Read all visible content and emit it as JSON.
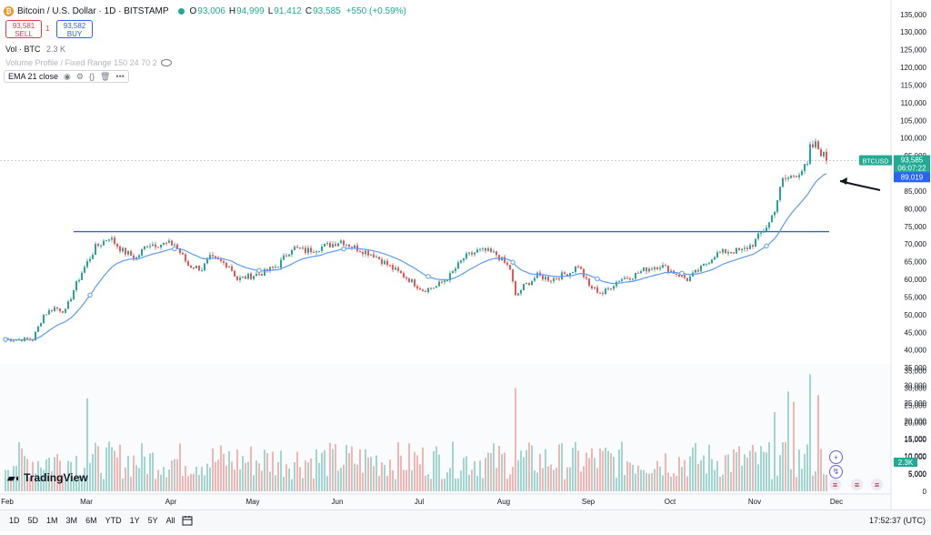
{
  "header": {
    "coin_glyph": "₿",
    "title": "Bitcoin / U.S. Dollar · 1D · BITSTAMP",
    "o_label": "O",
    "o_value": "93,006",
    "h_label": "H",
    "h_value": "94,999",
    "l_label": "L",
    "l_value": "91,412",
    "c_label": "C",
    "c_value": "93,585",
    "change": "+550 (+0.59%)"
  },
  "trade": {
    "sell_price": "93,581",
    "sell_label": "SELL",
    "spread": "1",
    "buy_price": "93,582",
    "buy_label": "BUY"
  },
  "volume_legend": {
    "label": "Vol · BTC",
    "value": "2.3 K"
  },
  "volume_profile_legend": "Volume Profile / Fixed Range 150 24 70 2",
  "ema_legend": {
    "label": "EMA 21 close"
  },
  "logo_text": "TradingView",
  "timeframes": [
    "1D",
    "5D",
    "1M",
    "3M",
    "6M",
    "YTD",
    "1Y",
    "5Y",
    "All"
  ],
  "clock": "17:52:37 (UTC)",
  "colors": {
    "up": "#26a69a",
    "down": "#ef5350",
    "ema": "#5b9cf6",
    "hline": "#3b5bdb",
    "price_tag": "#22ab94",
    "ema_tag": "#2962ff"
  },
  "icons": [
    "eye-icon",
    "gear-icon",
    "braces-icon",
    "trash-icon",
    "more-icon",
    "calendar-icon",
    "plus-icon",
    "arrow-icon"
  ],
  "chart_data": {
    "type": "candlestick",
    "symbol": "BTCUSD",
    "y_axis": {
      "range": [
        0,
        137000
      ],
      "ticks": [
        0,
        5000,
        10000,
        15000,
        20000,
        25000,
        30000,
        35000,
        40000,
        45000,
        50000,
        55000,
        60000,
        65000,
        70000,
        75000,
        80000,
        85000,
        90000,
        95000,
        100000,
        105000,
        110000,
        115000,
        120000,
        125000,
        130000,
        135000
      ],
      "tick_labels": [
        "0",
        "5,000",
        "10,000",
        "15,000",
        "20,000",
        "25,000",
        "30,000",
        "35,000",
        "40,000",
        "45,000",
        "50,000",
        "55,000",
        "60,000",
        "65,000",
        "70,000",
        "75,000",
        "80,000",
        "85,000",
        "90,000",
        "95,000",
        "100,000",
        "105,000",
        "110,000",
        "115,000",
        "120,000",
        "125,000",
        "130,000",
        "135,000"
      ]
    },
    "x_axis": {
      "labels": [
        "Feb",
        "Mar",
        "Apr",
        "May",
        "Jun",
        "Jul",
        "Aug",
        "Sep",
        "Oct",
        "Nov",
        "Dec"
      ],
      "label_day_index": [
        0,
        29,
        60,
        90,
        121,
        151,
        182,
        213,
        243,
        274,
        304
      ]
    },
    "price_waypoints": [
      [
        0,
        43000
      ],
      [
        10,
        43000
      ],
      [
        14,
        50000
      ],
      [
        18,
        52000
      ],
      [
        22,
        51000
      ],
      [
        25,
        57000
      ],
      [
        28,
        62000
      ],
      [
        33,
        69000
      ],
      [
        38,
        72000
      ],
      [
        43,
        68000
      ],
      [
        48,
        66000
      ],
      [
        52,
        70000
      ],
      [
        58,
        70000
      ],
      [
        62,
        70000
      ],
      [
        67,
        64000
      ],
      [
        72,
        63000
      ],
      [
        75,
        66000
      ],
      [
        82,
        64000
      ],
      [
        85,
        60000
      ],
      [
        90,
        61000
      ],
      [
        95,
        62000
      ],
      [
        100,
        64000
      ],
      [
        105,
        69000
      ],
      [
        110,
        68000
      ],
      [
        115,
        69000
      ],
      [
        120,
        70000
      ],
      [
        123,
        71000
      ],
      [
        128,
        69000
      ],
      [
        135,
        67000
      ],
      [
        142,
        63000
      ],
      [
        148,
        60000
      ],
      [
        153,
        57000
      ],
      [
        158,
        58000
      ],
      [
        163,
        61000
      ],
      [
        168,
        66000
      ],
      [
        173,
        68000
      ],
      [
        176,
        68000
      ],
      [
        180,
        67000
      ],
      [
        185,
        63000
      ],
      [
        187,
        55000
      ],
      [
        190,
        58000
      ],
      [
        195,
        61000
      ],
      [
        200,
        60000
      ],
      [
        207,
        62000
      ],
      [
        210,
        64000
      ],
      [
        214,
        58000
      ],
      [
        219,
        56000
      ],
      [
        225,
        60000
      ],
      [
        230,
        61000
      ],
      [
        235,
        63000
      ],
      [
        240,
        64000
      ],
      [
        245,
        62000
      ],
      [
        250,
        60000
      ],
      [
        255,
        63000
      ],
      [
        260,
        67000
      ],
      [
        265,
        68000
      ],
      [
        270,
        68000
      ],
      [
        274,
        70000
      ],
      [
        280,
        76000
      ],
      [
        282,
        80000
      ],
      [
        285,
        88000
      ],
      [
        288,
        89000
      ],
      [
        290,
        90000
      ],
      [
        292,
        91000
      ],
      [
        294,
        92000
      ],
      [
        295,
        97000
      ],
      [
        297,
        98000
      ],
      [
        298,
        97000
      ],
      [
        300,
        95000
      ],
      [
        301,
        93585
      ]
    ],
    "candle_count": 302,
    "ema_period": 21,
    "horizontal_line": 73500,
    "last_price": "93,585",
    "countdown": "06:07:22",
    "ema_value": "89,019",
    "volume": {
      "scale_ticks": [
        0,
        5000,
        10000,
        15000,
        20000,
        25000,
        30000,
        35000
      ],
      "scale_labels": [
        "0",
        "5,000",
        "10,000",
        "15,000",
        "20,000",
        "25,000",
        "30,000",
        "35,000"
      ],
      "last_value": "2.3K",
      "spikes": [
        [
          30,
          27000
        ],
        [
          187,
          30000
        ],
        [
          282,
          23000
        ],
        [
          287,
          29000
        ],
        [
          289,
          26000
        ],
        [
          295,
          34000
        ],
        [
          298,
          28000
        ]
      ]
    }
  }
}
